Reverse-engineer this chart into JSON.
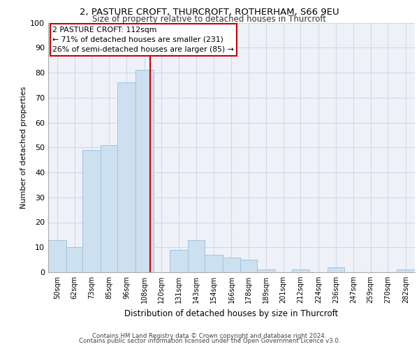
{
  "title1": "2, PASTURE CROFT, THURCROFT, ROTHERHAM, S66 9EU",
  "title2": "Size of property relative to detached houses in Thurcroft",
  "xlabel": "Distribution of detached houses by size in Thurcroft",
  "ylabel": "Number of detached properties",
  "footer1": "Contains HM Land Registry data © Crown copyright and database right 2024.",
  "footer2": "Contains public sector information licensed under the Open Government Licence v3.0.",
  "annotation_line1": "2 PASTURE CROFT: 112sqm",
  "annotation_line2": "← 71% of detached houses are smaller (231)",
  "annotation_line3": "26% of semi-detached houses are larger (85) →",
  "property_size": 112,
  "bar_labels": [
    "50sqm",
    "62sqm",
    "73sqm",
    "85sqm",
    "96sqm",
    "108sqm",
    "120sqm",
    "131sqm",
    "143sqm",
    "154sqm",
    "166sqm",
    "178sqm",
    "189sqm",
    "201sqm",
    "212sqm",
    "224sqm",
    "236sqm",
    "247sqm",
    "259sqm",
    "270sqm",
    "282sqm"
  ],
  "bar_values": [
    13,
    10,
    49,
    51,
    76,
    81,
    0,
    9,
    13,
    7,
    6,
    5,
    1,
    0,
    1,
    0,
    2,
    0,
    0,
    0,
    1
  ],
  "bar_edges": [
    44,
    56,
    67,
    79,
    90,
    102,
    114,
    125,
    137,
    148,
    160,
    172,
    183,
    195,
    206,
    218,
    230,
    241,
    253,
    264,
    276,
    288
  ],
  "bar_color": "#cce0f0",
  "bar_edgecolor": "#a0c4e0",
  "line_color": "#cc0000",
  "annotation_box_color": "#cc0000",
  "grid_color": "#d0d8e8",
  "background_color": "#eef2f8",
  "ylim": [
    0,
    100
  ],
  "yticks": [
    0,
    10,
    20,
    30,
    40,
    50,
    60,
    70,
    80,
    90,
    100
  ]
}
